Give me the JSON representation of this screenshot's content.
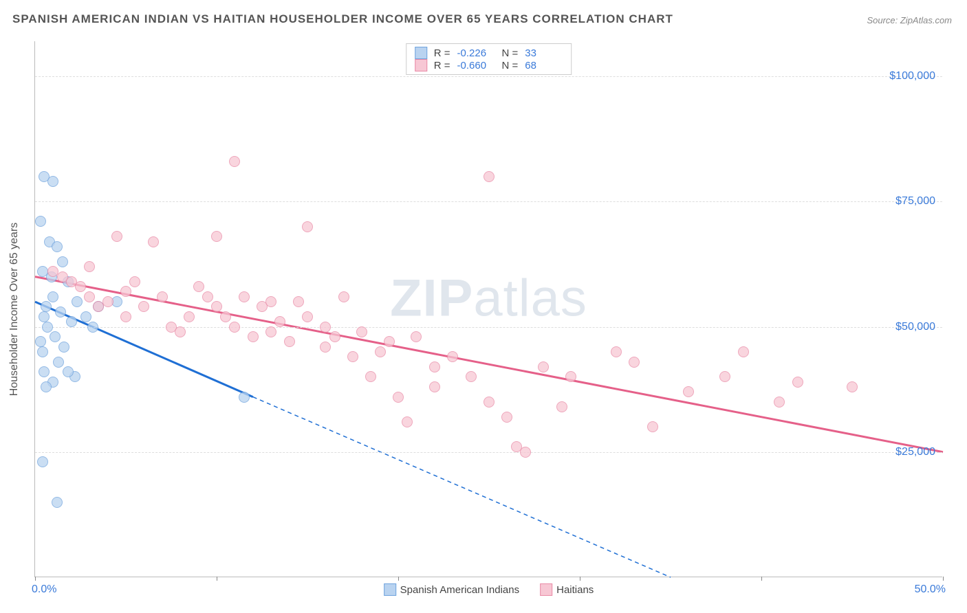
{
  "title": "SPANISH AMERICAN INDIAN VS HAITIAN HOUSEHOLDER INCOME OVER 65 YEARS CORRELATION CHART",
  "source": "Source: ZipAtlas.com",
  "watermark_bold": "ZIP",
  "watermark_rest": "atlas",
  "yaxis_title": "Householder Income Over 65 years",
  "chart": {
    "type": "scatter",
    "background_color": "#ffffff",
    "grid_color": "#dddddd",
    "axis_color": "#bbbbbb",
    "text_color": "#555555",
    "value_color": "#3a7ad9",
    "xlim": [
      0,
      50
    ],
    "ylim": [
      0,
      107000
    ],
    "x_ticks_pct": [
      0,
      10,
      20,
      30,
      40,
      50
    ],
    "x_start_label": "0.0%",
    "x_end_label": "50.0%",
    "y_ticks": [
      {
        "v": 25000,
        "label": "$25,000"
      },
      {
        "v": 50000,
        "label": "$50,000"
      },
      {
        "v": 75000,
        "label": "$75,000"
      },
      {
        "v": 100000,
        "label": "$100,000"
      }
    ],
    "series": [
      {
        "name": "Spanish American Indians",
        "fill": "#b9d3f0",
        "stroke": "#6fa3dd",
        "line_color": "#1f6fd4",
        "r": "-0.226",
        "n": "33",
        "trend": {
          "x1": 0,
          "y1": 55000,
          "x2": 12,
          "y2": 36000,
          "dash_to_x": 35,
          "dash_to_y": 0
        },
        "points": [
          [
            0.5,
            80000
          ],
          [
            1.0,
            79000
          ],
          [
            0.3,
            71000
          ],
          [
            0.8,
            67000
          ],
          [
            1.2,
            66000
          ],
          [
            1.5,
            63000
          ],
          [
            0.4,
            61000
          ],
          [
            0.9,
            60000
          ],
          [
            1.8,
            59000
          ],
          [
            1.0,
            56000
          ],
          [
            2.3,
            55000
          ],
          [
            0.6,
            54000
          ],
          [
            1.4,
            53000
          ],
          [
            0.5,
            52000
          ],
          [
            2.0,
            51000
          ],
          [
            0.7,
            50000
          ],
          [
            1.1,
            48000
          ],
          [
            0.3,
            47000
          ],
          [
            1.6,
            46000
          ],
          [
            0.4,
            45000
          ],
          [
            2.8,
            52000
          ],
          [
            3.2,
            50000
          ],
          [
            1.3,
            43000
          ],
          [
            0.5,
            41000
          ],
          [
            2.2,
            40000
          ],
          [
            1.0,
            39000
          ],
          [
            0.6,
            38000
          ],
          [
            0.4,
            23000
          ],
          [
            1.2,
            15000
          ],
          [
            3.5,
            54000
          ],
          [
            4.5,
            55000
          ],
          [
            11.5,
            36000
          ],
          [
            1.8,
            41000
          ]
        ]
      },
      {
        "name": "Haitians",
        "fill": "#f7c7d4",
        "stroke": "#e98aa6",
        "line_color": "#e56089",
        "r": "-0.660",
        "n": "68",
        "trend": {
          "x1": 0,
          "y1": 60000,
          "x2": 50,
          "y2": 25000
        },
        "points": [
          [
            1,
            61000
          ],
          [
            1.5,
            60000
          ],
          [
            2,
            59000
          ],
          [
            2.5,
            58000
          ],
          [
            3,
            62000
          ],
          [
            3,
            56000
          ],
          [
            3.5,
            54000
          ],
          [
            4,
            55000
          ],
          [
            4.5,
            68000
          ],
          [
            5,
            57000
          ],
          [
            5,
            52000
          ],
          [
            5.5,
            59000
          ],
          [
            6,
            54000
          ],
          [
            6.5,
            67000
          ],
          [
            7,
            56000
          ],
          [
            7.5,
            50000
          ],
          [
            8,
            49000
          ],
          [
            8.5,
            52000
          ],
          [
            9,
            58000
          ],
          [
            9.5,
            56000
          ],
          [
            10,
            54000
          ],
          [
            10,
            68000
          ],
          [
            10.5,
            52000
          ],
          [
            11,
            50000
          ],
          [
            11,
            83000
          ],
          [
            11.5,
            56000
          ],
          [
            12,
            48000
          ],
          [
            12.5,
            54000
          ],
          [
            13,
            55000
          ],
          [
            13,
            49000
          ],
          [
            13.5,
            51000
          ],
          [
            14,
            47000
          ],
          [
            14.5,
            55000
          ],
          [
            15,
            52000
          ],
          [
            15,
            70000
          ],
          [
            16,
            50000
          ],
          [
            16,
            46000
          ],
          [
            16.5,
            48000
          ],
          [
            17,
            56000
          ],
          [
            17.5,
            44000
          ],
          [
            18,
            49000
          ],
          [
            18.5,
            40000
          ],
          [
            19,
            45000
          ],
          [
            19.5,
            47000
          ],
          [
            20,
            36000
          ],
          [
            20.5,
            31000
          ],
          [
            21,
            48000
          ],
          [
            22,
            42000
          ],
          [
            22,
            38000
          ],
          [
            23,
            44000
          ],
          [
            24,
            40000
          ],
          [
            25,
            80000
          ],
          [
            25,
            35000
          ],
          [
            26,
            32000
          ],
          [
            26.5,
            26000
          ],
          [
            27,
            25000
          ],
          [
            28,
            42000
          ],
          [
            29,
            34000
          ],
          [
            29.5,
            40000
          ],
          [
            32,
            45000
          ],
          [
            33,
            43000
          ],
          [
            34,
            30000
          ],
          [
            36,
            37000
          ],
          [
            38,
            40000
          ],
          [
            39,
            45000
          ],
          [
            41,
            35000
          ],
          [
            42,
            39000
          ],
          [
            45,
            38000
          ]
        ]
      }
    ]
  },
  "stats_box": {
    "r_label": "R =",
    "n_label": "N ="
  }
}
